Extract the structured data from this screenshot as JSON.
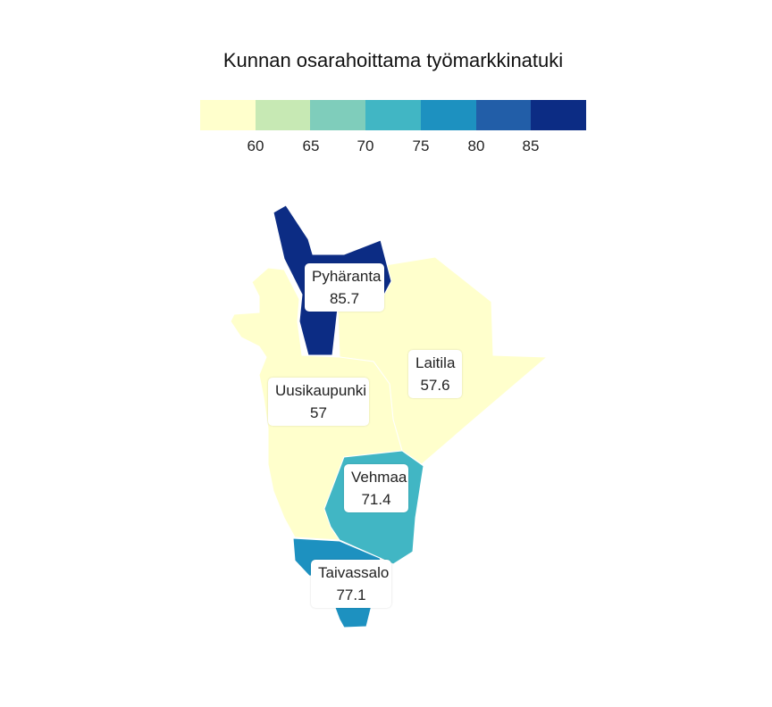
{
  "title": "Kunnan osarahoittama työmarkkinatuki",
  "legend": {
    "colors": [
      "#ffffcc",
      "#c7e9b4",
      "#7fcdbb",
      "#41b6c4",
      "#1d91c0",
      "#225ea8",
      "#0c2c84"
    ],
    "ticks": [
      "60",
      "65",
      "70",
      "75",
      "80",
      "85"
    ]
  },
  "map": {
    "municipalities": [
      {
        "name": "Pyhäranta",
        "value": "85.7",
        "color": "#0c2c84"
      },
      {
        "name": "Uusikaupunki",
        "value": "57",
        "color": "#ffffcc"
      },
      {
        "name": "Laitila",
        "value": "57.6",
        "color": "#ffffcc"
      },
      {
        "name": "Vehmaa",
        "value": "71.4",
        "color": "#41b6c4"
      },
      {
        "name": "Taivassalo",
        "value": "77.1",
        "color": "#1d91c0"
      }
    ]
  }
}
